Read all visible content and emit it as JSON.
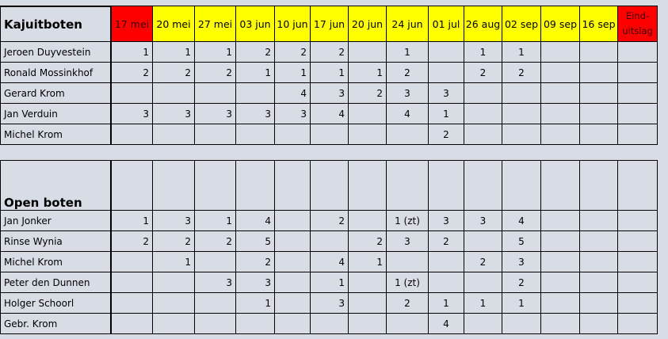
{
  "header": {
    "columns": [
      "17 mei",
      "20 mei",
      "27 mei",
      "03 jun",
      "10 jun",
      "17 jun",
      "20 jun",
      "24 jun",
      "01 jul",
      "26 aug",
      "02 sep",
      "09 sep",
      "16 sep",
      "Eind-uitslag"
    ]
  },
  "sections": [
    {
      "title": "Kajuitboten",
      "rows": [
        {
          "name": "Jeroen Duyvestein",
          "cells": [
            1,
            1,
            1,
            2,
            2,
            2,
            null,
            1,
            null,
            1,
            1,
            null,
            null,
            null
          ]
        },
        {
          "name": "Ronald Mossinkhof",
          "cells": [
            2,
            2,
            2,
            1,
            1,
            1,
            1,
            2,
            null,
            2,
            2,
            null,
            null,
            null
          ]
        },
        {
          "name": "Gerard Krom",
          "cells": [
            null,
            null,
            null,
            null,
            4,
            3,
            2,
            3,
            3,
            null,
            null,
            null,
            null,
            null
          ]
        },
        {
          "name": "Jan Verduin",
          "cells": [
            3,
            3,
            3,
            3,
            3,
            4,
            null,
            4,
            1,
            null,
            null,
            null,
            null,
            null
          ]
        },
        {
          "name": "Michel Krom",
          "cells": [
            null,
            null,
            null,
            null,
            null,
            null,
            null,
            null,
            2,
            null,
            null,
            null,
            null,
            null
          ]
        }
      ]
    },
    {
      "title": "Open boten",
      "rows": [
        {
          "name": "Jan Jonker",
          "cells": [
            1,
            3,
            1,
            4,
            null,
            2,
            null,
            "1 (zt)",
            3,
            3,
            4,
            null,
            null,
            null
          ]
        },
        {
          "name": "Rinse Wynia",
          "cells": [
            2,
            2,
            2,
            5,
            null,
            null,
            2,
            3,
            2,
            null,
            5,
            null,
            null,
            null
          ]
        },
        {
          "name": "Michel Krom",
          "cells": [
            null,
            1,
            null,
            2,
            null,
            4,
            1,
            null,
            null,
            2,
            3,
            null,
            null,
            null
          ]
        },
        {
          "name": "Peter den Dunnen",
          "cells": [
            null,
            null,
            3,
            3,
            null,
            1,
            null,
            "1 (zt)",
            null,
            null,
            2,
            null,
            null,
            null
          ]
        },
        {
          "name": "Holger Schoorl",
          "cells": [
            null,
            null,
            null,
            1,
            null,
            3,
            null,
            2,
            1,
            1,
            1,
            null,
            null,
            null
          ]
        },
        {
          "name": "Gebr. Krom",
          "cells": [
            null,
            null,
            null,
            null,
            null,
            null,
            null,
            null,
            4,
            null,
            null,
            null,
            null,
            null
          ]
        }
      ]
    }
  ]
}
